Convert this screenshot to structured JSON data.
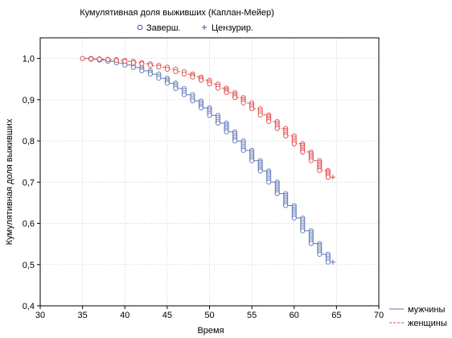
{
  "chart_data": {
    "type": "scatter",
    "title": "Кумулятивная доля выживших (Каплан-Мейер)",
    "xlabel": "Время",
    "ylabel": "Кумулятивная доля выживших",
    "xlim": [
      30,
      70
    ],
    "ylim": [
      0.4,
      1.05
    ],
    "xticks": [
      "30",
      "35",
      "40",
      "45",
      "50",
      "55",
      "60",
      "65",
      "70"
    ],
    "yticks": [
      "0,4",
      "0,5",
      "0,6",
      "0,7",
      "0,8",
      "0,9",
      "1,0"
    ],
    "grid": true,
    "marker_legend": {
      "position": "top-center",
      "items": [
        {
          "label": "Заверш.",
          "marker": "circle"
        },
        {
          "label": "Цензурир.",
          "marker": "plus"
        }
      ]
    },
    "series_legend_position": "bottom-right",
    "series": [
      {
        "name": "мужчины",
        "color": "#5b73b3",
        "line_style": "solid",
        "x": [
          35,
          36,
          37,
          38,
          39,
          40,
          41,
          42,
          43,
          44,
          45,
          46,
          47,
          48,
          49,
          50,
          51,
          52,
          53,
          54,
          55,
          56,
          57,
          58,
          59,
          60,
          61,
          62,
          63,
          64
        ],
        "y": [
          1.0,
          0.998,
          0.996,
          0.993,
          0.989,
          0.984,
          0.978,
          0.97,
          0.962,
          0.952,
          0.94,
          0.927,
          0.912,
          0.897,
          0.88,
          0.862,
          0.843,
          0.822,
          0.8,
          0.777,
          0.752,
          0.727,
          0.7,
          0.672,
          0.643,
          0.613,
          0.582,
          0.551,
          0.525,
          0.506
        ],
        "censored_x": [
          64
        ],
        "censored_y": [
          0.506
        ]
      },
      {
        "name": "женщины",
        "color": "#e04848",
        "line_style": "dashed",
        "x": [
          35,
          36,
          37,
          38,
          39,
          40,
          41,
          42,
          43,
          44,
          45,
          46,
          47,
          48,
          49,
          50,
          51,
          52,
          53,
          54,
          55,
          56,
          57,
          58,
          59,
          60,
          61,
          62,
          63,
          64
        ],
        "y": [
          1.0,
          0.999,
          0.998,
          0.997,
          0.995,
          0.993,
          0.99,
          0.987,
          0.983,
          0.979,
          0.974,
          0.968,
          0.962,
          0.955,
          0.947,
          0.938,
          0.928,
          0.917,
          0.905,
          0.892,
          0.878,
          0.863,
          0.847,
          0.83,
          0.812,
          0.793,
          0.773,
          0.752,
          0.728,
          0.712
        ],
        "censored_x": [
          64
        ],
        "censored_y": [
          0.712
        ]
      }
    ]
  }
}
